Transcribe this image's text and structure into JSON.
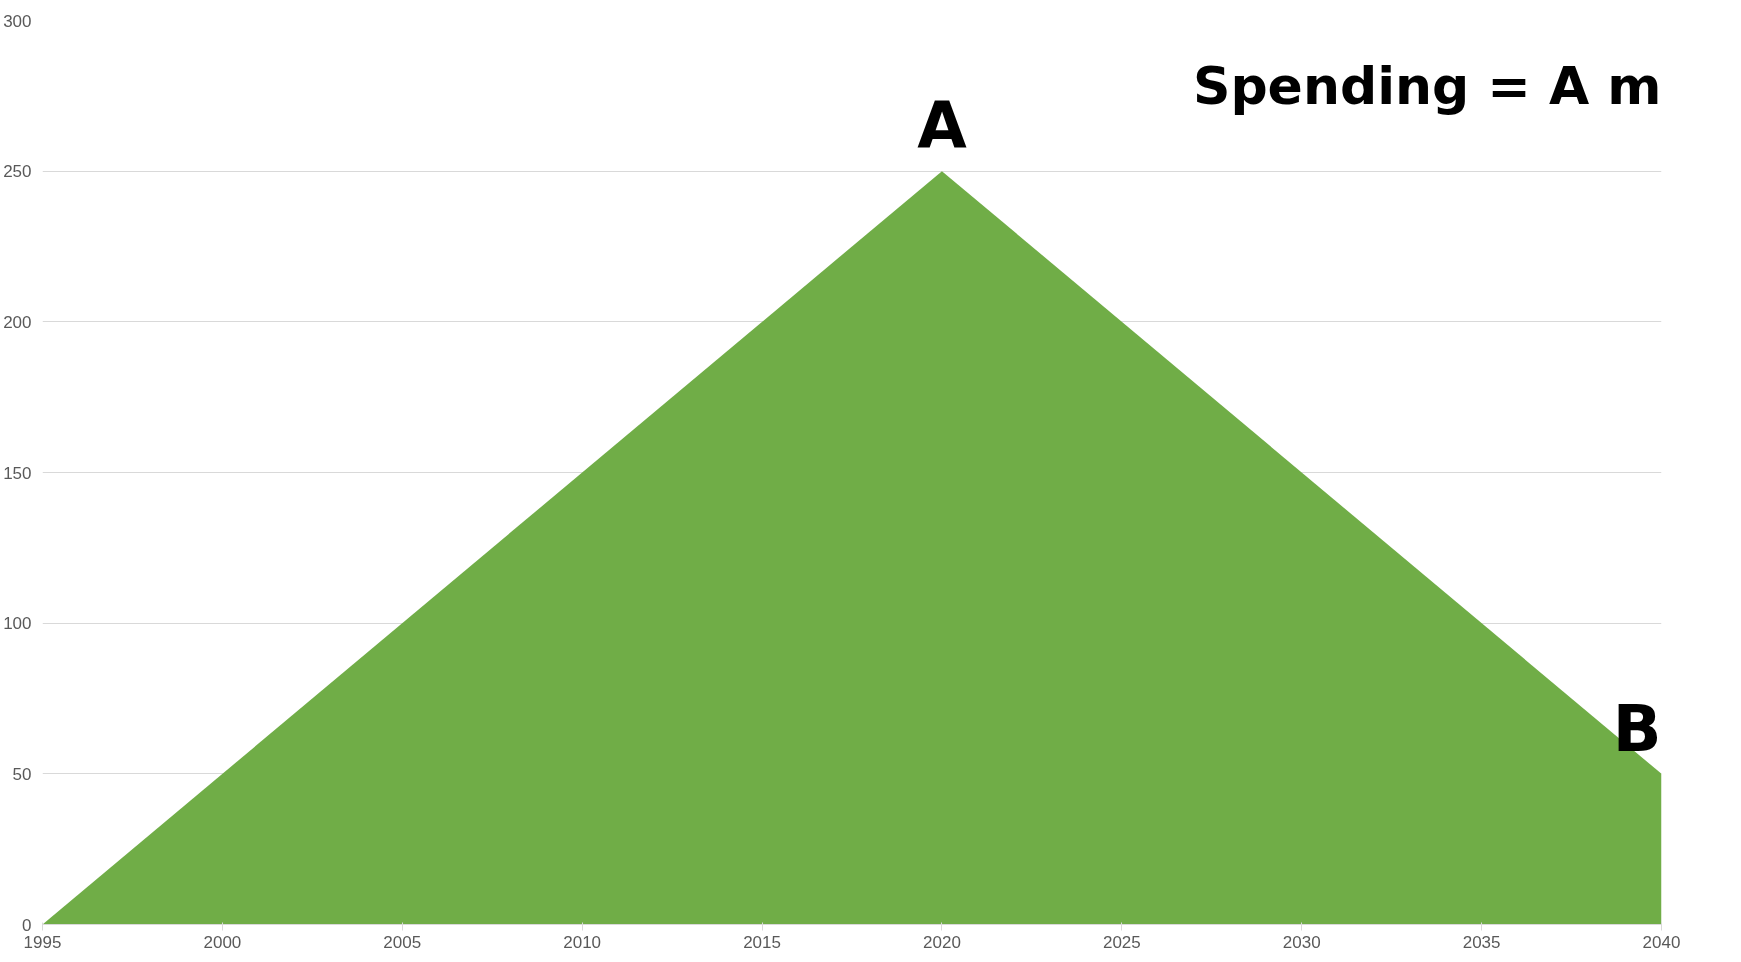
{
  "chart_data": {
    "type": "area",
    "x": [
      1995,
      2020,
      2040
    ],
    "series": [
      {
        "color": "#70ad47",
        "values": [
          0,
          250,
          50
        ]
      }
    ],
    "xlim": [
      1995,
      2040
    ],
    "xticks": [
      1995,
      2000,
      2005,
      2010,
      2015,
      2020,
      2025,
      2030,
      2035,
      2040
    ],
    "ylim": [
      0,
      300
    ],
    "yticks": [
      0,
      50,
      100,
      150,
      200,
      250,
      300
    ],
    "grid": "y",
    "annotations": [
      {
        "text": "A",
        "x": 2020,
        "y": 250
      },
      {
        "text": "B",
        "x": 2040,
        "y": 50
      },
      "Spending = A m"
    ]
  }
}
